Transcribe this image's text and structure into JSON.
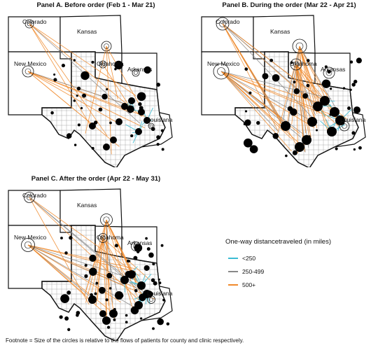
{
  "panels": [
    {
      "id": "a",
      "title": "Panel A. Before order (Feb 1 - Mar 21)",
      "intensity": 1
    },
    {
      "id": "b",
      "title": "Panel B. During the order (Mar 22 - Apr 21)",
      "intensity": 3
    },
    {
      "id": "c",
      "title": "Panel C. After the order (Apr 22 - May 31)",
      "intensity": 2
    }
  ],
  "states": {
    "colorado": "Colorado",
    "kansas": "Kansas",
    "new_mexico": "New Mexico",
    "oklahoma": "Oklahoma",
    "arkansas": "Arkansas",
    "louisiana": "Louisiana"
  },
  "legend": {
    "title": "One-way  distancetraveled (in miles)",
    "items": [
      {
        "label": "<250",
        "color": "#3bbcd3"
      },
      {
        "label": "250-499",
        "color": "#888888"
      },
      {
        "label": "500+",
        "color": "#f08a2c"
      }
    ]
  },
  "footnote": "Footnote = Size of the circles is relative to the flows of patients for county and clinic respectively."
}
